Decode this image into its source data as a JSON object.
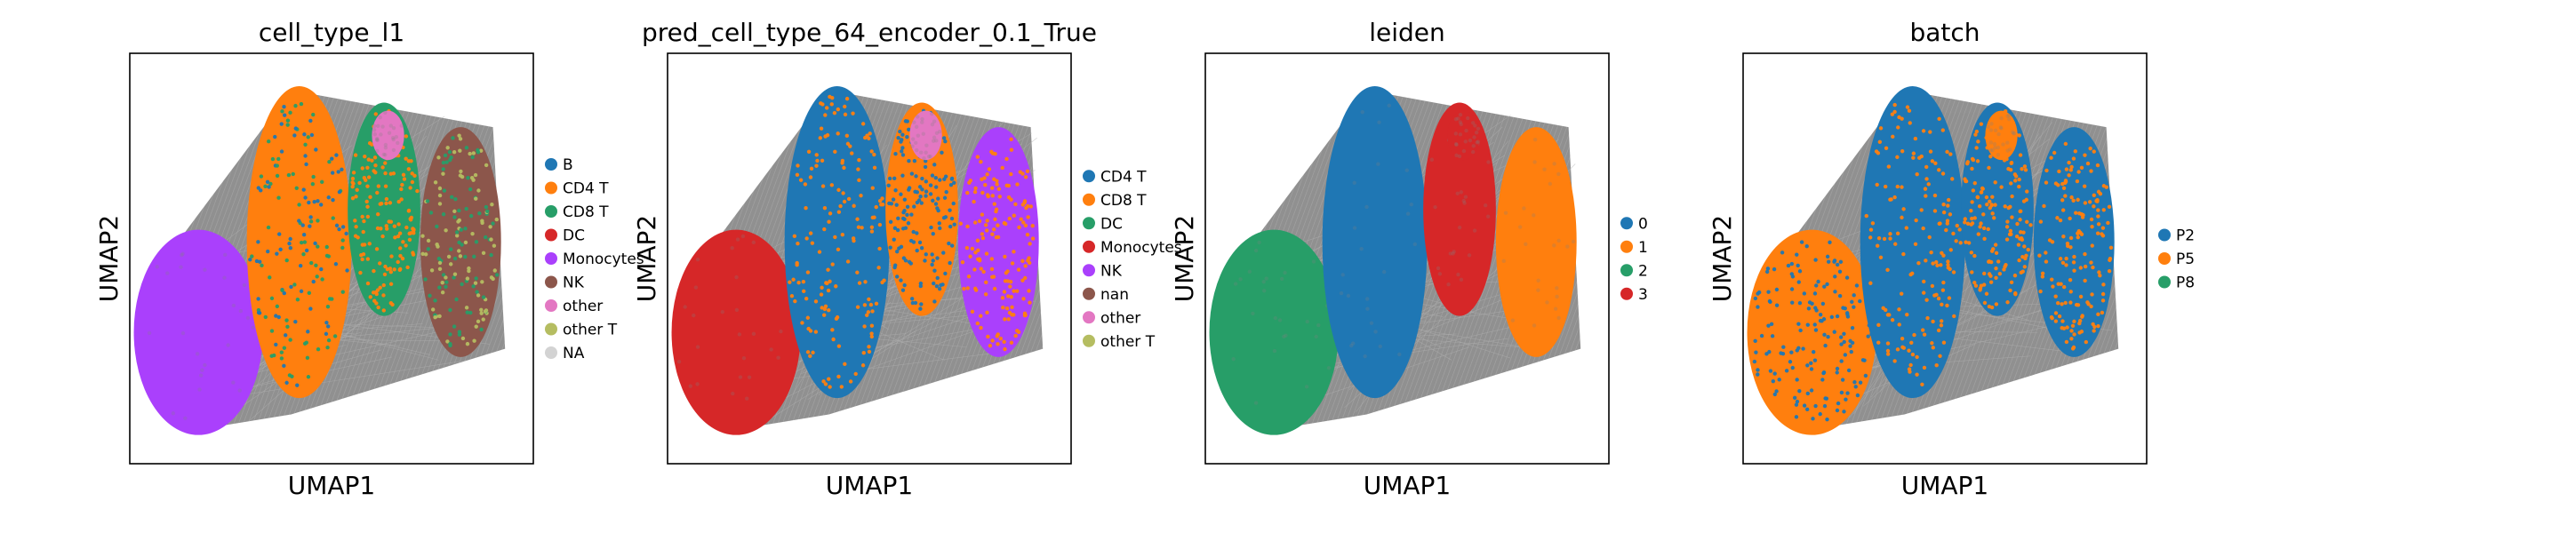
{
  "chart_data": [
    {
      "type": "scatter",
      "title": "cell_type_l1",
      "xlabel": "UMAP1",
      "ylabel": "UMAP2",
      "legend_position": "right",
      "grid": false,
      "categories": [
        {
          "label": "B",
          "color": "#1f77b4"
        },
        {
          "label": "CD4 T",
          "color": "#ff7f0e"
        },
        {
          "label": "CD8 T",
          "color": "#279e68"
        },
        {
          "label": "DC",
          "color": "#d62728"
        },
        {
          "label": "Monocytes",
          "color": "#aa40fc"
        },
        {
          "label": "NK",
          "color": "#8c564b"
        },
        {
          "label": "other",
          "color": "#e377c2"
        },
        {
          "label": "other T",
          "color": "#b5bd61"
        },
        {
          "label": "NA",
          "color": "#d3d3d3"
        }
      ]
    },
    {
      "type": "scatter",
      "title": "pred_cell_type_64_encoder_0.1_True",
      "xlabel": "UMAP1",
      "ylabel": "UMAP2",
      "legend_position": "right",
      "grid": false,
      "categories": [
        {
          "label": "CD4 T",
          "color": "#1f77b4"
        },
        {
          "label": "CD8 T",
          "color": "#ff7f0e"
        },
        {
          "label": "DC",
          "color": "#279e68"
        },
        {
          "label": "Monocytes",
          "color": "#d62728"
        },
        {
          "label": "NK",
          "color": "#aa40fc"
        },
        {
          "label": "nan",
          "color": "#8c564b"
        },
        {
          "label": "other",
          "color": "#e377c2"
        },
        {
          "label": "other T",
          "color": "#b5bd61"
        }
      ]
    },
    {
      "type": "scatter",
      "title": "leiden",
      "xlabel": "UMAP1",
      "ylabel": "UMAP2",
      "legend_position": "right",
      "grid": false,
      "categories": [
        {
          "label": "0",
          "color": "#1f77b4"
        },
        {
          "label": "1",
          "color": "#ff7f0e"
        },
        {
          "label": "2",
          "color": "#279e68"
        },
        {
          "label": "3",
          "color": "#d62728"
        }
      ]
    },
    {
      "type": "scatter",
      "title": "batch",
      "xlabel": "UMAP1",
      "ylabel": "UMAP2",
      "legend_position": "right",
      "grid": false,
      "categories": [
        {
          "label": "P2",
          "color": "#1f77b4"
        },
        {
          "label": "P5",
          "color": "#ff7f0e"
        },
        {
          "label": "P8",
          "color": "#279e68"
        }
      ]
    }
  ]
}
